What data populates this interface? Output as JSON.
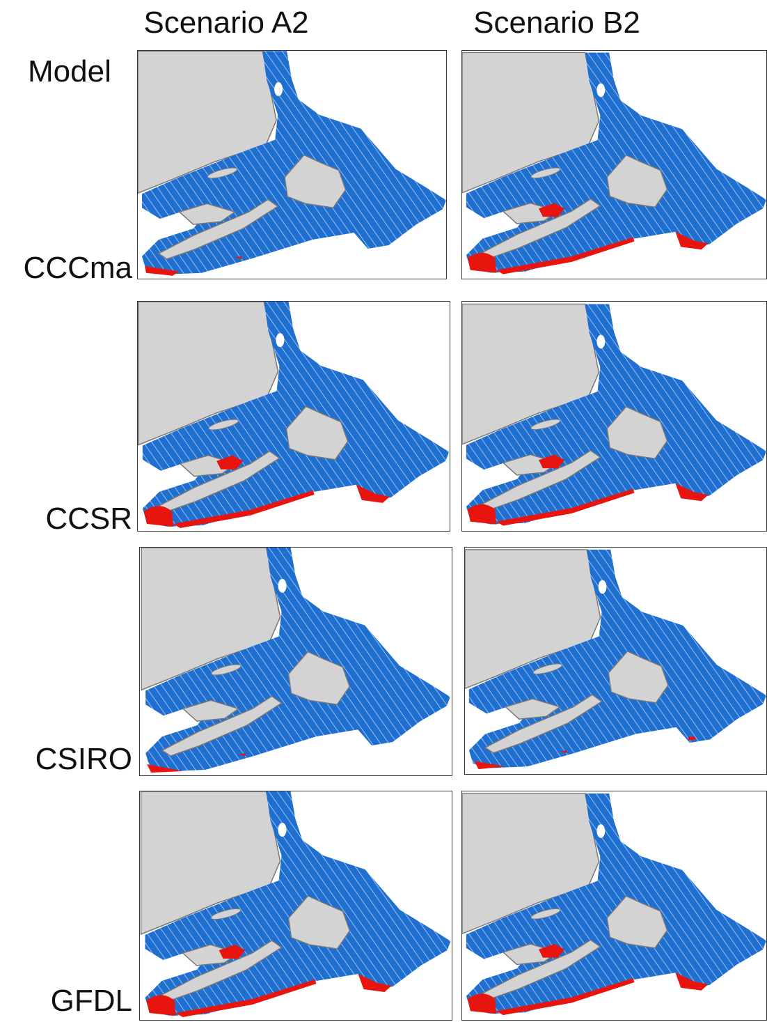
{
  "header": {
    "columns": [
      "Scenario A2",
      "Scenario B2"
    ],
    "row_title": "Model"
  },
  "rows": [
    "CCCma",
    "CCSR",
    "CSIRO",
    "GFDL"
  ]
}
